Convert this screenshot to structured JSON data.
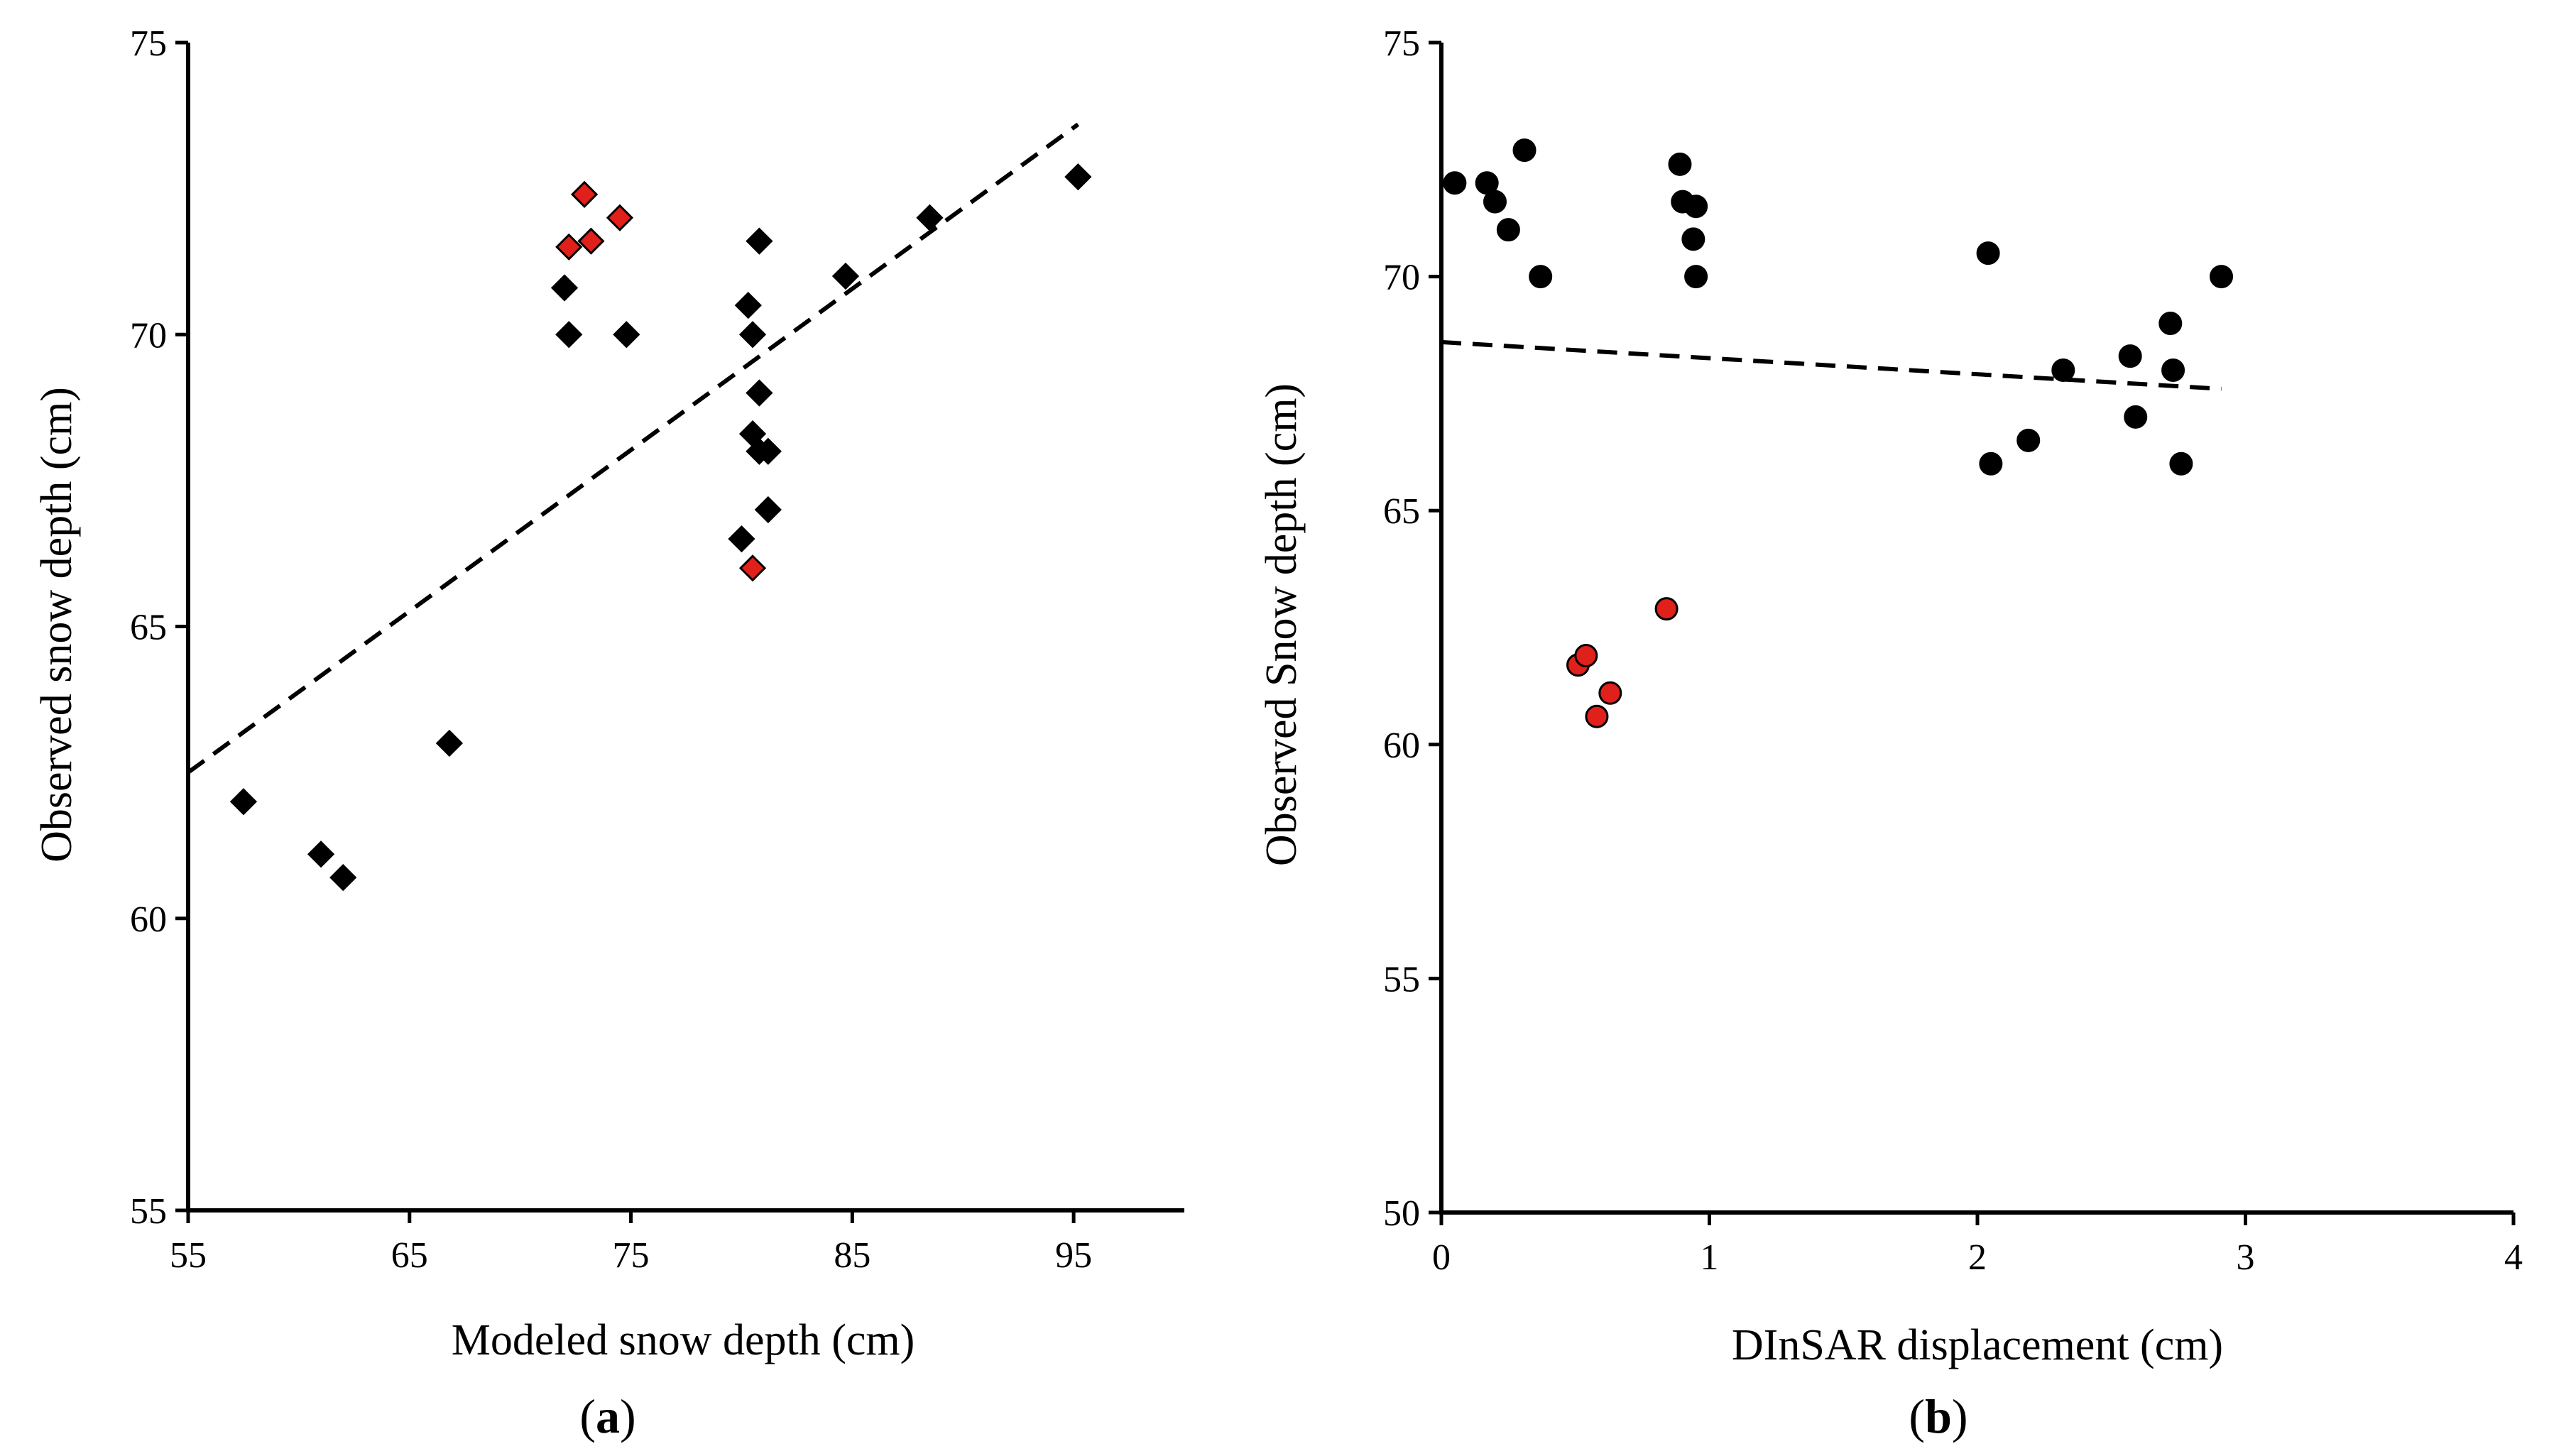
{
  "chart_data": [
    {
      "type": "scatter",
      "panel_label": "(a)",
      "panel_letter": "a",
      "xlabel": "Modeled snow depth (cm)",
      "ylabel": "Observed snow depth (cm)",
      "xlim": [
        55,
        100
      ],
      "ylim": [
        55,
        75
      ],
      "xticks": [
        "55",
        "65",
        "75",
        "85",
        "95"
      ],
      "yticks": [
        "55",
        "60",
        "65",
        "70",
        "75"
      ],
      "marker": "diamond",
      "colors": {
        "black": "#000000",
        "red": "#e0201b"
      },
      "series": [
        {
          "name": "black points",
          "color": "black",
          "points": [
            [
              57.5,
              62.0
            ],
            [
              61.0,
              61.1
            ],
            [
              62.0,
              60.7
            ],
            [
              66.8,
              63.0
            ],
            [
              72.0,
              70.8
            ],
            [
              72.2,
              70.0
            ],
            [
              74.8,
              70.0
            ],
            [
              80.3,
              70.5
            ],
            [
              80.5,
              70.0
            ],
            [
              80.8,
              71.6
            ],
            [
              80.5,
              68.3
            ],
            [
              80.8,
              69.0
            ],
            [
              80.8,
              68.0
            ],
            [
              81.2,
              68.0
            ],
            [
              81.2,
              67.0
            ],
            [
              80.0,
              66.5
            ],
            [
              84.7,
              71.0
            ],
            [
              88.5,
              72.0
            ],
            [
              95.2,
              72.7
            ]
          ]
        },
        {
          "name": "red points",
          "color": "red",
          "points": [
            [
              72.2,
              71.5
            ],
            [
              72.9,
              72.4
            ],
            [
              73.2,
              71.6
            ],
            [
              74.5,
              72.0
            ],
            [
              80.5,
              66.0
            ]
          ]
        }
      ],
      "trendline": {
        "style": "dashed",
        "x": [
          55,
          95.2
        ],
        "y": [
          62.5,
          73.6
        ]
      }
    },
    {
      "type": "scatter",
      "panel_label": "(b)",
      "panel_letter": "b",
      "xlabel": "DInSAR displacement  (cm)",
      "ylabel": "Observed Snow depth (cm)",
      "xlim": [
        0,
        4
      ],
      "ylim": [
        50,
        75
      ],
      "xticks": [
        "0",
        "1",
        "2",
        "3",
        "4"
      ],
      "yticks": [
        "50",
        "55",
        "60",
        "65",
        "70",
        "75"
      ],
      "marker": "circle",
      "colors": {
        "black": "#000000",
        "red": "#e0201b"
      },
      "series": [
        {
          "name": "black points",
          "color": "black",
          "points": [
            [
              0.05,
              72.0
            ],
            [
              0.17,
              72.0
            ],
            [
              0.2,
              71.6
            ],
            [
              0.25,
              71.0
            ],
            [
              0.31,
              72.7
            ],
            [
              0.37,
              70.0
            ],
            [
              0.89,
              72.4
            ],
            [
              0.9,
              71.6
            ],
            [
              0.95,
              71.5
            ],
            [
              0.94,
              70.8
            ],
            [
              0.95,
              70.0
            ],
            [
              2.04,
              70.5
            ],
            [
              2.05,
              66.0
            ],
            [
              2.19,
              66.5
            ],
            [
              2.32,
              68.0
            ],
            [
              2.57,
              68.3
            ],
            [
              2.59,
              67.0
            ],
            [
              2.72,
              69.0
            ],
            [
              2.73,
              68.0
            ],
            [
              2.76,
              66.0
            ],
            [
              2.91,
              70.0
            ]
          ]
        },
        {
          "name": "red points",
          "color": "red",
          "points": [
            [
              0.51,
              61.7
            ],
            [
              0.54,
              61.9
            ],
            [
              0.58,
              60.6
            ],
            [
              0.63,
              61.1
            ],
            [
              0.84,
              62.9
            ]
          ]
        }
      ],
      "trendline": {
        "style": "dashed",
        "x": [
          0.0,
          2.91
        ],
        "y": [
          68.6,
          67.6
        ]
      }
    }
  ]
}
